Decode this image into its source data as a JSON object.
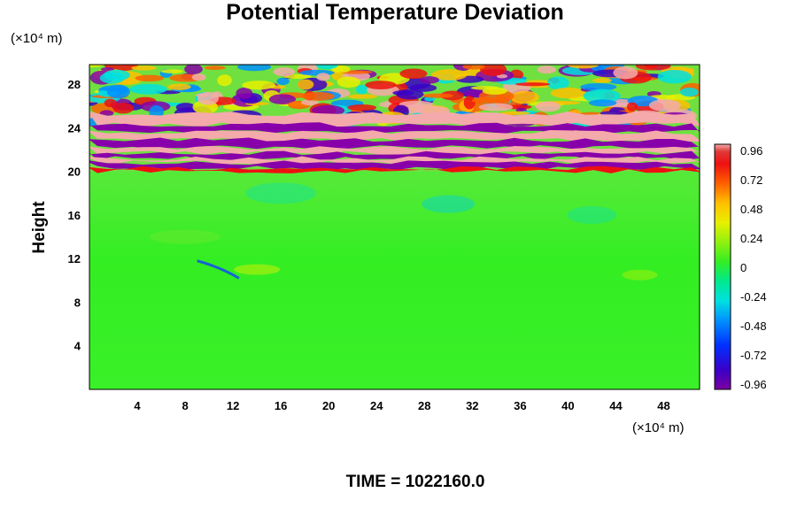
{
  "chart_data": {
    "type": "heatmap",
    "title": "Potential Temperature Deviation",
    "ylabel": "Height",
    "x_unit": "(×10⁴ m)",
    "y_unit": "(×10⁴ m)",
    "x_ticks": [
      4,
      8,
      12,
      16,
      20,
      24,
      28,
      32,
      36,
      40,
      44,
      48
    ],
    "y_ticks": [
      4,
      8,
      12,
      16,
      20,
      24,
      28
    ],
    "xlim": [
      0,
      51
    ],
    "ylim": [
      0,
      29.8
    ],
    "colorbar": {
      "ticks": [
        "0.96",
        "0.72",
        "0.48",
        "0.24",
        "0",
        "-0.24",
        "-0.48",
        "-0.72",
        "-0.96"
      ],
      "range": [
        -1.0,
        1.0
      ],
      "placement": "right"
    },
    "field_summary": {
      "troposphere_y_max": 20,
      "tropopause_y": 20,
      "stratosphere_y_range": [
        20,
        29.8
      ],
      "troposphere_value_approx": 0,
      "stratosphere_values": "alternating strong positive (≥0.96) and negative (≤-0.96) layers"
    },
    "time_label": "TIME = 1022160.0"
  },
  "colors": {
    "background": "#ffffff",
    "near_zero": "#33ee22",
    "max_positive": "#f7b3b3",
    "max_negative": "#8800aa"
  }
}
